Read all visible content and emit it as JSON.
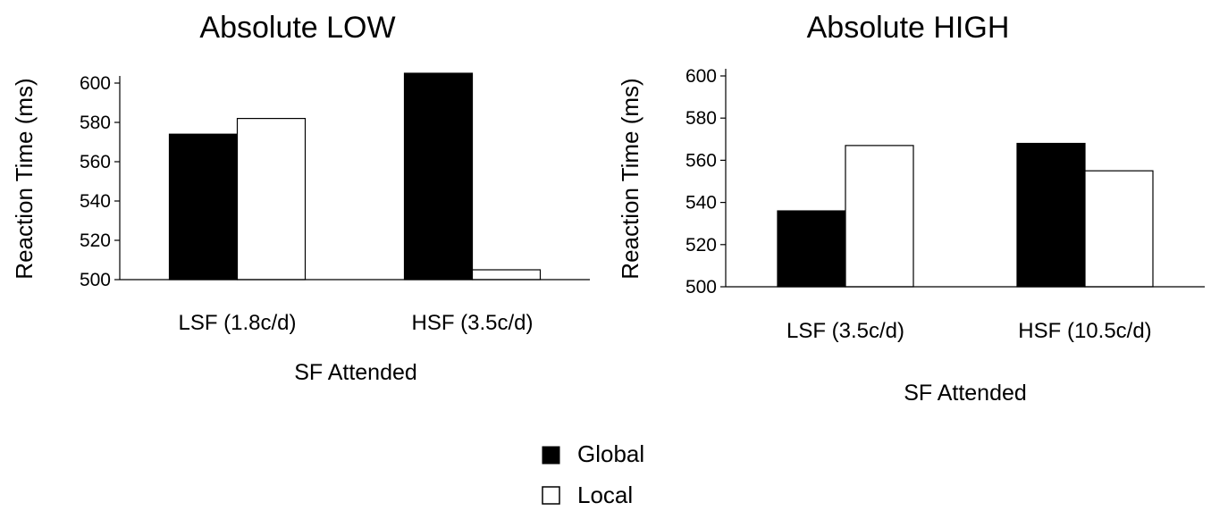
{
  "chart_data": [
    {
      "type": "bar",
      "title": "Absolute LOW",
      "xlabel": "SF Attended",
      "ylabel": "Reaction Time (ms)",
      "categories": [
        "LSF (1.8c/d)",
        "HSF (3.5c/d)"
      ],
      "ylim": [
        500,
        600
      ],
      "yticks": [
        500,
        520,
        540,
        560,
        580,
        600
      ],
      "series": [
        {
          "name": "Global",
          "values": [
            574,
            605
          ],
          "color": "#000000"
        },
        {
          "name": "Local",
          "values": [
            582,
            505
          ],
          "color": "#ffffff"
        }
      ]
    },
    {
      "type": "bar",
      "title": "Absolute HIGH",
      "xlabel": "SF Attended",
      "ylabel": "Reaction Time (ms)",
      "categories": [
        "LSF (3.5c/d)",
        "HSF (10.5c/d)"
      ],
      "ylim": [
        500,
        600
      ],
      "yticks": [
        500,
        520,
        540,
        560,
        580,
        600
      ],
      "series": [
        {
          "name": "Global",
          "values": [
            536,
            568
          ],
          "color": "#000000"
        },
        {
          "name": "Local",
          "values": [
            567,
            555
          ],
          "color": "#ffffff"
        }
      ]
    }
  ],
  "legend": {
    "position": "bottom-center",
    "items": [
      {
        "label": "Global",
        "color": "#000000"
      },
      {
        "label": "Local",
        "color": "#ffffff"
      }
    ]
  }
}
